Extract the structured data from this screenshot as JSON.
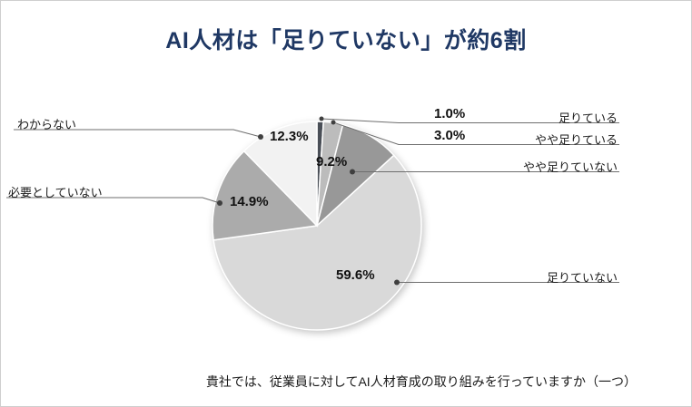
{
  "page": {
    "title": "AI人材は「足りていない」が約6割",
    "question": "貴社では、従業員に対してAI人材育成の取り組みを行っていますか（一つ）"
  },
  "colors": {
    "title_text": "#1f3864",
    "leader_line": "#6e6e6e",
    "leader_dot": "#3f3f3f",
    "label_text": "#1a1a1a",
    "frame_border": "#cfcfcf"
  },
  "chart_data": {
    "type": "pie",
    "title": "AI人材は「足りていない」が約6割",
    "question": "貴社では、従業員に対してAI人材育成の取り組みを行っていますか（一つ）",
    "start_angle_deg": 0,
    "direction": "clockwise",
    "unit": "%",
    "slices": [
      {
        "label": "足りている",
        "value": 1.0,
        "pct_label": "1.0%",
        "color": "#4a4f57"
      },
      {
        "label": "やや足りている",
        "value": 3.0,
        "pct_label": "3.0%",
        "color": "#bcbcbc"
      },
      {
        "label": "やや足りていない",
        "value": 9.2,
        "pct_label": "9.2%",
        "color": "#989898"
      },
      {
        "label": "足りていない",
        "value": 59.6,
        "pct_label": "59.6%",
        "color": "#d9d9d9"
      },
      {
        "label": "必要としていない",
        "value": 14.9,
        "pct_label": "14.9%",
        "color": "#ababab"
      },
      {
        "label": "わからない",
        "value": 12.3,
        "pct_label": "12.3%",
        "color": "#f2f2f2"
      }
    ]
  }
}
